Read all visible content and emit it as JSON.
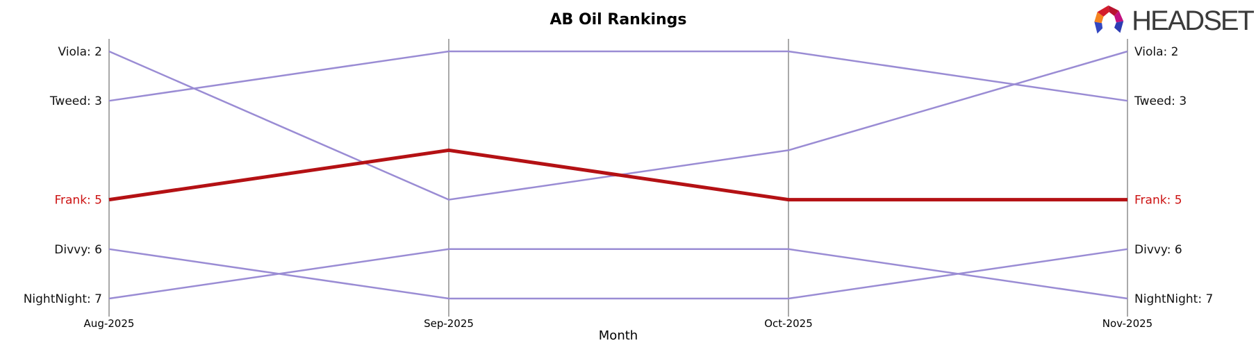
{
  "logo": {
    "text": "HEADSET"
  },
  "colors": {
    "line_purple": "#9a8cd4",
    "line_red": "#b41114",
    "label_red": "#cc1111",
    "label_black": "#111111",
    "axis_gray": "#a9a9a9",
    "logo_text": "#3b3b3b"
  },
  "chart_data": {
    "type": "line",
    "subtype": "bump-rank-chart",
    "title": "AB Oil Rankings",
    "xlabel": "Month",
    "x": [
      "Aug-2025",
      "Sep-2025",
      "Oct-2025",
      "Nov-2025"
    ],
    "y_is_rank": true,
    "rank_range": [
      2,
      7
    ],
    "grid": false,
    "legend": "none (labels at line ends)",
    "axis_color": "#a9a9a9",
    "series": [
      {
        "name": "Viola",
        "ranks": [
          2,
          5,
          4,
          2
        ],
        "color": "#9a8cd4",
        "width": 2.5,
        "highlight": false,
        "label_left": "Viola: 2",
        "label_right": "Viola: 2",
        "label_color": "#111111"
      },
      {
        "name": "Tweed",
        "ranks": [
          3,
          2,
          2,
          3
        ],
        "color": "#9a8cd4",
        "width": 2.5,
        "highlight": false,
        "label_left": "Tweed: 3",
        "label_right": "Tweed: 3",
        "label_color": "#111111"
      },
      {
        "name": "Frank",
        "ranks": [
          5,
          4,
          5,
          5
        ],
        "color": "#b41114",
        "width": 5,
        "highlight": true,
        "label_left": "Frank: 5",
        "label_right": "Frank: 5",
        "label_color": "#cc1111"
      },
      {
        "name": "Divvy",
        "ranks": [
          6,
          7,
          7,
          6
        ],
        "color": "#9a8cd4",
        "width": 2.5,
        "highlight": false,
        "label_left": "Divvy: 6",
        "label_right": "Divvy: 6",
        "label_color": "#111111"
      },
      {
        "name": "NightNight",
        "ranks": [
          7,
          6,
          6,
          7
        ],
        "color": "#9a8cd4",
        "width": 2.5,
        "highlight": false,
        "label_left": "NightNight: 7",
        "label_right": "NightNight: 7",
        "label_color": "#111111"
      }
    ]
  }
}
